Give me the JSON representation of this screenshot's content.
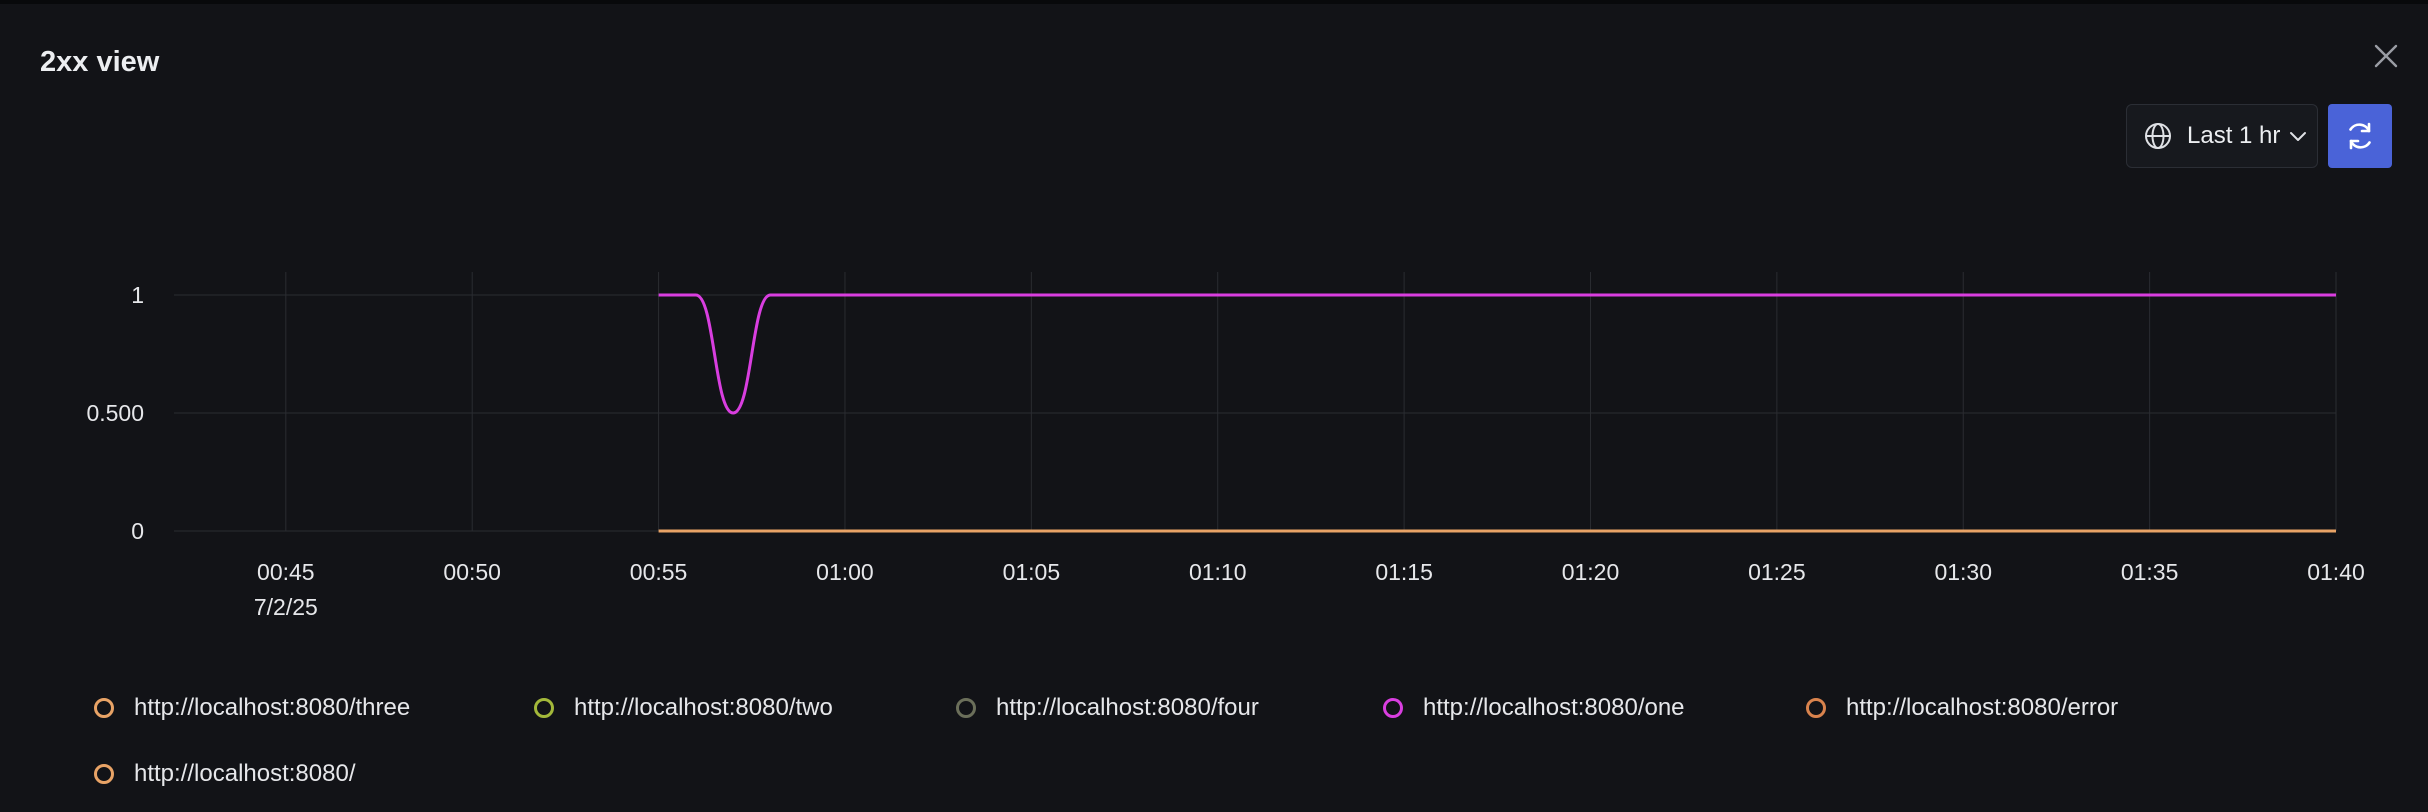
{
  "modal": {
    "title": "2xx view"
  },
  "toolbar": {
    "range_label": "Last 1 hr"
  },
  "icons": {
    "close": "close-icon",
    "globe": "globe-icon",
    "chevron": "chevron-down-icon",
    "refresh": "refresh-icon"
  },
  "colors": {
    "accent": "#4a63d8",
    "background": "#121317",
    "grid": "#2a2c31"
  },
  "chart_data": {
    "type": "line",
    "title": "",
    "xlabel": "",
    "ylabel": "",
    "x_ticks": [
      "00:45",
      "00:50",
      "00:55",
      "01:00",
      "01:05",
      "01:10",
      "01:15",
      "01:20",
      "01:25",
      "01:30",
      "01:35",
      "01:40"
    ],
    "x_date_label": "7/2/25",
    "y_ticks": [
      {
        "value": 0,
        "label": "0"
      },
      {
        "value": 0.5,
        "label": "0.500"
      },
      {
        "value": 1,
        "label": "1"
      }
    ],
    "ylim": [
      0,
      1.1
    ],
    "x_range_minutes": [
      "00:42",
      "01:40"
    ],
    "grid": true,
    "legend_position": "bottom",
    "series": [
      {
        "name": "http://localhost:8080/three",
        "color": "#e8a366",
        "points": [
          [
            "00:55",
            0
          ],
          [
            "01:40",
            0
          ]
        ]
      },
      {
        "name": "http://localhost:8080/two",
        "color": "#a3b83a",
        "points": []
      },
      {
        "name": "http://localhost:8080/four",
        "color": "#6b6f5a",
        "points": []
      },
      {
        "name": "http://localhost:8080/one",
        "color": "#d93ee0",
        "points": [
          [
            "00:55",
            1
          ],
          [
            "00:56",
            1
          ],
          [
            "00:57",
            0.5
          ],
          [
            "00:58",
            1
          ],
          [
            "01:00",
            1
          ],
          [
            "01:40",
            1
          ]
        ]
      },
      {
        "name": "http://localhost:8080/error",
        "color": "#d9834d",
        "points": []
      },
      {
        "name": "http://localhost:8080/",
        "color": "#e8a366",
        "points": []
      }
    ]
  }
}
